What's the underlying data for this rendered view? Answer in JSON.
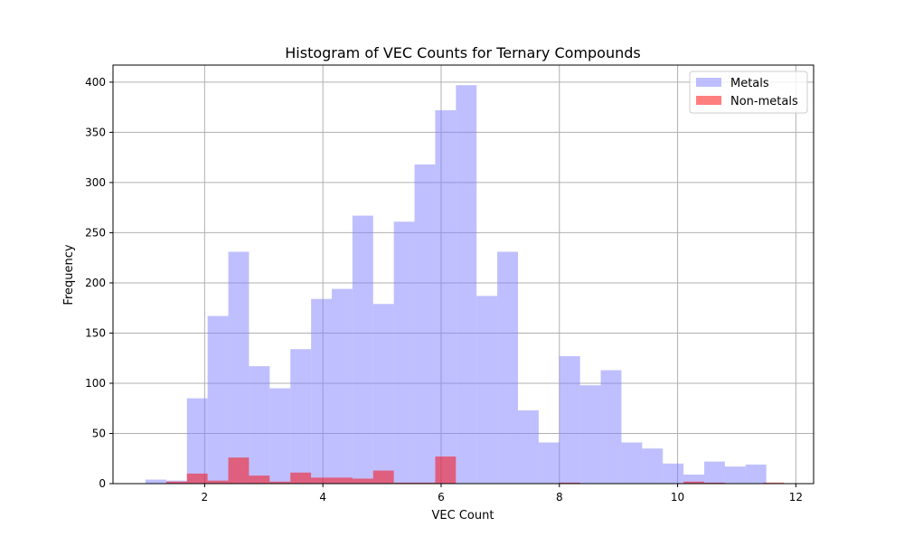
{
  "chart_data": {
    "type": "bar",
    "title": "Histogram of VEC Counts for Ternary Compounds",
    "xlabel": "VEC Count",
    "ylabel": "Frequency",
    "xlim": [
      0.45,
      12.3
    ],
    "ylim": [
      0,
      417
    ],
    "xticks": [
      2,
      4,
      6,
      8,
      10,
      12
    ],
    "yticks": [
      0,
      50,
      100,
      150,
      200,
      250,
      300,
      350,
      400
    ],
    "grid": true,
    "legend_position": "upper right",
    "series": [
      {
        "name": "Metals",
        "color": "#7f7fff",
        "bins": [
          {
            "x0": 1.0,
            "x1": 1.35,
            "value": 4
          },
          {
            "x0": 1.35,
            "x1": 1.7,
            "value": 3
          },
          {
            "x0": 1.7,
            "x1": 2.05,
            "value": 85
          },
          {
            "x0": 2.05,
            "x1": 2.4,
            "value": 167
          },
          {
            "x0": 2.4,
            "x1": 2.75,
            "value": 231
          },
          {
            "x0": 2.75,
            "x1": 3.1,
            "value": 117
          },
          {
            "x0": 3.1,
            "x1": 3.45,
            "value": 95
          },
          {
            "x0": 3.45,
            "x1": 3.8,
            "value": 134
          },
          {
            "x0": 3.8,
            "x1": 4.15,
            "value": 184
          },
          {
            "x0": 4.15,
            "x1": 4.5,
            "value": 194
          },
          {
            "x0": 4.5,
            "x1": 4.85,
            "value": 267
          },
          {
            "x0": 4.85,
            "x1": 5.2,
            "value": 179
          },
          {
            "x0": 5.2,
            "x1": 5.55,
            "value": 261
          },
          {
            "x0": 5.55,
            "x1": 5.9,
            "value": 318
          },
          {
            "x0": 5.9,
            "x1": 6.25,
            "value": 372
          },
          {
            "x0": 6.25,
            "x1": 6.6,
            "value": 397
          },
          {
            "x0": 6.6,
            "x1": 6.95,
            "value": 187
          },
          {
            "x0": 6.95,
            "x1": 7.3,
            "value": 231
          },
          {
            "x0": 7.3,
            "x1": 7.65,
            "value": 73
          },
          {
            "x0": 7.65,
            "x1": 8.0,
            "value": 41
          },
          {
            "x0": 8.0,
            "x1": 8.35,
            "value": 127
          },
          {
            "x0": 8.35,
            "x1": 8.7,
            "value": 98
          },
          {
            "x0": 8.7,
            "x1": 9.05,
            "value": 113
          },
          {
            "x0": 9.05,
            "x1": 9.4,
            "value": 41
          },
          {
            "x0": 9.4,
            "x1": 9.75,
            "value": 35
          },
          {
            "x0": 9.75,
            "x1": 10.1,
            "value": 20
          },
          {
            "x0": 10.1,
            "x1": 10.45,
            "value": 9
          },
          {
            "x0": 10.45,
            "x1": 10.8,
            "value": 22
          },
          {
            "x0": 10.8,
            "x1": 11.15,
            "value": 17
          },
          {
            "x0": 11.15,
            "x1": 11.5,
            "value": 19
          }
        ]
      },
      {
        "name": "Non-metals",
        "color": "#ff0000",
        "bins": [
          {
            "x0": 1.35,
            "x1": 1.7,
            "value": 2
          },
          {
            "x0": 1.7,
            "x1": 2.05,
            "value": 10
          },
          {
            "x0": 2.05,
            "x1": 2.4,
            "value": 3
          },
          {
            "x0": 2.4,
            "x1": 2.75,
            "value": 26
          },
          {
            "x0": 2.75,
            "x1": 3.1,
            "value": 8
          },
          {
            "x0": 3.1,
            "x1": 3.45,
            "value": 2
          },
          {
            "x0": 3.45,
            "x1": 3.8,
            "value": 11
          },
          {
            "x0": 3.8,
            "x1": 4.15,
            "value": 6
          },
          {
            "x0": 4.15,
            "x1": 4.5,
            "value": 6
          },
          {
            "x0": 4.5,
            "x1": 4.85,
            "value": 5
          },
          {
            "x0": 4.85,
            "x1": 5.2,
            "value": 13
          },
          {
            "x0": 5.2,
            "x1": 5.55,
            "value": 1
          },
          {
            "x0": 5.55,
            "x1": 5.9,
            "value": 1
          },
          {
            "x0": 5.9,
            "x1": 6.25,
            "value": 27
          },
          {
            "x0": 8.0,
            "x1": 8.35,
            "value": 1
          },
          {
            "x0": 10.1,
            "x1": 10.45,
            "value": 2
          },
          {
            "x0": 10.45,
            "x1": 10.8,
            "value": 1
          },
          {
            "x0": 11.45,
            "x1": 11.8,
            "value": 1
          }
        ]
      }
    ]
  }
}
